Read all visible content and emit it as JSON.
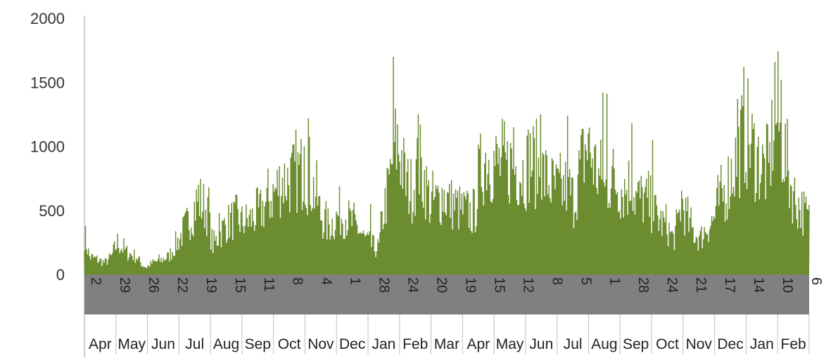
{
  "chart_data": {
    "type": "area",
    "title": "",
    "xlabel": "",
    "ylabel": "",
    "ylim": [
      0,
      2000
    ],
    "grid": false,
    "legend": "none",
    "colors": {
      "fill": "#6b8c2f",
      "band": "#808080",
      "axis": "#bfbfbf"
    },
    "y_ticks": [
      "0",
      "500",
      "1000",
      "1500",
      "2000"
    ],
    "day_ticks": [
      "2",
      "29",
      "26",
      "22",
      "19",
      "15",
      "11",
      "8",
      "4",
      "1",
      "28",
      "24",
      "20",
      "19",
      "15",
      "12",
      "8",
      "5",
      "1",
      "28",
      "24",
      "21",
      "17",
      "14",
      "10",
      "6"
    ],
    "month_labels": [
      "Apr",
      "May",
      "Jun",
      "Jul",
      "Aug",
      "Sep",
      "Oct",
      "Nov",
      "Dec",
      "Jan",
      "Feb",
      "Mar",
      "Apr",
      "May",
      "Jun",
      "Jul",
      "Aug",
      "Sep",
      "Oct",
      "Nov",
      "Dec",
      "Jan",
      "Feb"
    ],
    "envelope": [
      [
        0,
        330
      ],
      [
        5,
        150
      ],
      [
        14,
        120
      ],
      [
        20,
        100
      ],
      [
        26,
        150
      ],
      [
        32,
        270
      ],
      [
        40,
        190
      ],
      [
        50,
        150
      ],
      [
        56,
        80
      ],
      [
        60,
        60
      ],
      [
        66,
        100
      ],
      [
        74,
        120
      ],
      [
        82,
        160
      ],
      [
        92,
        310
      ],
      [
        100,
        440
      ],
      [
        110,
        640
      ],
      [
        118,
        540
      ],
      [
        124,
        240
      ],
      [
        130,
        330
      ],
      [
        136,
        420
      ],
      [
        144,
        470
      ],
      [
        152,
        440
      ],
      [
        160,
        460
      ],
      [
        168,
        510
      ],
      [
        176,
        600
      ],
      [
        184,
        700
      ],
      [
        190,
        790
      ],
      [
        198,
        800
      ],
      [
        206,
        850
      ],
      [
        212,
        880
      ],
      [
        218,
        780
      ],
      [
        224,
        660
      ],
      [
        228,
        500
      ],
      [
        234,
        410
      ],
      [
        240,
        440
      ],
      [
        246,
        510
      ],
      [
        252,
        500
      ],
      [
        258,
        430
      ],
      [
        264,
        390
      ],
      [
        270,
        300
      ],
      [
        276,
        240
      ],
      [
        280,
        220
      ],
      [
        284,
        230
      ],
      [
        288,
        500
      ],
      [
        294,
        760
      ],
      [
        298,
        1050
      ],
      [
        302,
        1100
      ],
      [
        306,
        980
      ],
      [
        310,
        760
      ],
      [
        316,
        720
      ],
      [
        322,
        900
      ],
      [
        328,
        800
      ],
      [
        334,
        590
      ],
      [
        340,
        620
      ],
      [
        346,
        680
      ],
      [
        352,
        610
      ],
      [
        358,
        580
      ],
      [
        364,
        540
      ],
      [
        370,
        530
      ],
      [
        376,
        490
      ],
      [
        382,
        880
      ],
      [
        388,
        1000
      ],
      [
        394,
        950
      ],
      [
        400,
        920
      ],
      [
        406,
        880
      ],
      [
        412,
        950
      ],
      [
        418,
        900
      ],
      [
        424,
        860
      ],
      [
        430,
        980
      ],
      [
        436,
        900
      ],
      [
        442,
        850
      ],
      [
        448,
        780
      ],
      [
        454,
        720
      ],
      [
        460,
        700
      ],
      [
        466,
        750
      ],
      [
        472,
        620
      ],
      [
        478,
        880
      ],
      [
        484,
        1080
      ],
      [
        490,
        980
      ],
      [
        496,
        820
      ],
      [
        502,
        700
      ],
      [
        508,
        840
      ],
      [
        514,
        760
      ],
      [
        520,
        720
      ],
      [
        526,
        760
      ],
      [
        532,
        650
      ],
      [
        538,
        640
      ],
      [
        544,
        600
      ],
      [
        550,
        520
      ],
      [
        556,
        440
      ],
      [
        562,
        400
      ],
      [
        568,
        300
      ],
      [
        572,
        400
      ],
      [
        576,
        640
      ],
      [
        580,
        500
      ],
      [
        584,
        400
      ],
      [
        588,
        350
      ],
      [
        594,
        300
      ],
      [
        600,
        400
      ],
      [
        606,
        450
      ],
      [
        612,
        600
      ],
      [
        618,
        700
      ],
      [
        624,
        860
      ],
      [
        630,
        1000
      ],
      [
        636,
        1200
      ],
      [
        642,
        1100
      ],
      [
        648,
        1000
      ],
      [
        654,
        900
      ],
      [
        660,
        860
      ],
      [
        666,
        1380
      ],
      [
        672,
        1200
      ],
      [
        676,
        1000
      ],
      [
        680,
        800
      ],
      [
        686,
        620
      ],
      [
        692,
        550
      ],
      [
        699,
        460
      ]
    ],
    "spikes": [
      [
        1,
        380
      ],
      [
        81,
        170
      ],
      [
        110,
        700
      ],
      [
        120,
        680
      ],
      [
        130,
        480
      ],
      [
        212,
        1000
      ],
      [
        216,
        1220
      ],
      [
        276,
        550
      ],
      [
        298,
        1700
      ],
      [
        322,
        1250
      ],
      [
        382,
        1100
      ],
      [
        414,
        1150
      ],
      [
        440,
        1250
      ],
      [
        466,
        1240
      ],
      [
        486,
        1100
      ],
      [
        500,
        1420
      ],
      [
        504,
        1410
      ],
      [
        528,
        1180
      ],
      [
        548,
        1050
      ],
      [
        630,
        1370
      ],
      [
        666,
        1660
      ],
      [
        672,
        1520
      ]
    ]
  }
}
